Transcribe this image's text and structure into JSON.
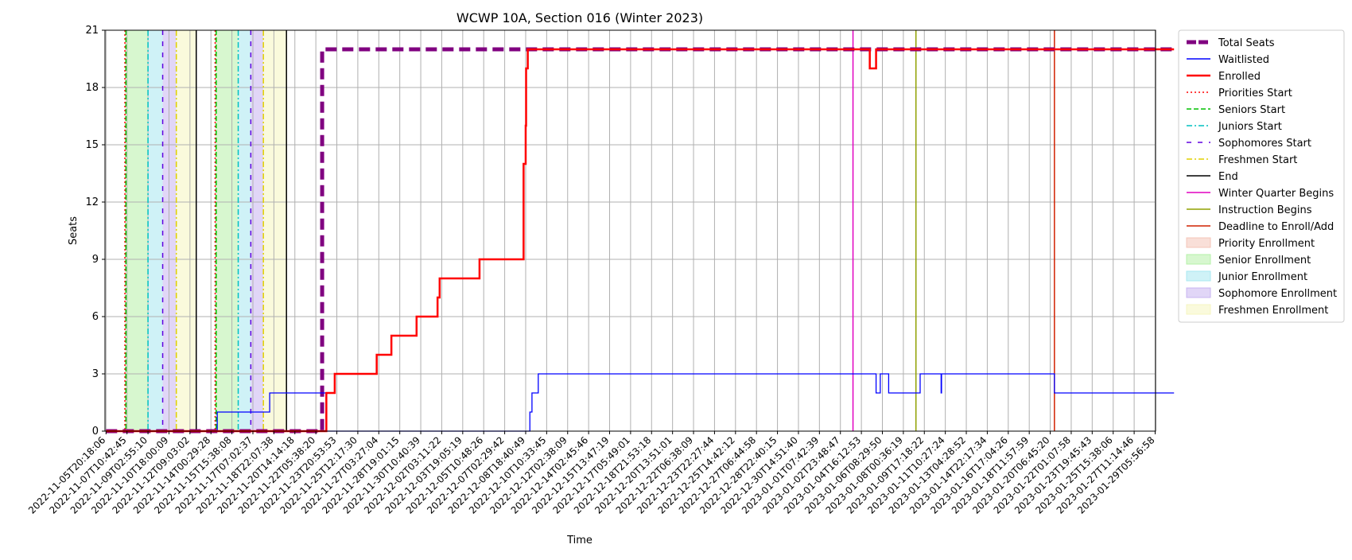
{
  "chart_data": {
    "type": "line",
    "title": "WCWP 10A, Section 016 (Winter 2023)",
    "xlabel": "Time",
    "ylabel": "Seats",
    "ylim": [
      0,
      21
    ],
    "yticks": [
      0,
      3,
      6,
      9,
      12,
      15,
      18,
      21
    ],
    "grid": true,
    "legend_position": "outside-right",
    "x_tick_labels": [
      "2022-11-05T20:18:06",
      "2022-11-07T10:42:45",
      "2022-11-09T02:55:10",
      "2022-11-10T18:00:09",
      "2022-11-12T09:03:02",
      "2022-11-14T00:29:28",
      "2022-11-15T15:38:08",
      "2022-11-17T07:02:37",
      "2022-11-18T22:07:38",
      "2022-11-20T14:14:18",
      "2022-11-22T05:38:20",
      "2022-11-23T20:53:53",
      "2022-11-25T12:17:30",
      "2022-11-27T03:27:04",
      "2022-11-28T19:01:15",
      "2022-11-30T10:40:39",
      "2022-12-02T03:11:22",
      "2022-12-03T19:05:19",
      "2022-12-05T10:48:26",
      "2022-12-07T02:29:42",
      "2022-12-08T18:40:49",
      "2022-12-10T10:33:45",
      "2022-12-12T02:38:09",
      "2022-12-14T02:45:46",
      "2022-12-15T13:47:19",
      "2022-12-17T05:49:01",
      "2022-12-18T21:53:18",
      "2022-12-20T13:51:01",
      "2022-12-22T06:38:09",
      "2022-12-23T22:27:44",
      "2022-12-25T14:42:12",
      "2022-12-27T06:44:58",
      "2022-12-28T22:40:15",
      "2022-12-30T14:51:40",
      "2023-01-01T07:42:39",
      "2023-01-02T23:48:47",
      "2023-01-04T16:12:53",
      "2023-01-06T08:29:50",
      "2023-01-08T00:36:19",
      "2023-01-09T17:18:22",
      "2023-01-11T10:27:24",
      "2023-01-13T04:28:52",
      "2023-01-14T22:17:34",
      "2023-01-16T17:04:26",
      "2023-01-18T11:57:59",
      "2023-01-20T06:45:20",
      "2023-01-22T01:07:58",
      "2023-01-23T19:45:43",
      "2023-01-25T15:38:06",
      "2023-01-27T11:14:46",
      "2023-01-29T05:56:58"
    ],
    "series": [
      {
        "name": "Total Seats",
        "color": "#800080",
        "style": "dashed-thick",
        "points": [
          [
            0,
            0
          ],
          [
            10.3,
            0
          ],
          [
            10.3,
            20
          ],
          [
            50.9,
            20
          ]
        ]
      },
      {
        "name": "Waitlisted",
        "color": "#0000ff",
        "style": "solid-thin",
        "points": [
          [
            0,
            0
          ],
          [
            5.3,
            0
          ],
          [
            5.3,
            1
          ],
          [
            7.8,
            1
          ],
          [
            7.8,
            2
          ],
          [
            10.5,
            2
          ],
          [
            10.5,
            0
          ],
          [
            20.2,
            0
          ],
          [
            20.2,
            1
          ],
          [
            20.3,
            1
          ],
          [
            20.3,
            2
          ],
          [
            20.6,
            2
          ],
          [
            20.6,
            3
          ],
          [
            36.7,
            3
          ],
          [
            36.7,
            2
          ],
          [
            36.9,
            2
          ],
          [
            36.9,
            3
          ],
          [
            37.3,
            3
          ],
          [
            37.3,
            2
          ],
          [
            38.8,
            2
          ],
          [
            38.8,
            3
          ],
          [
            39.8,
            3
          ],
          [
            39.8,
            2
          ],
          [
            39.82,
            2
          ],
          [
            39.82,
            3
          ],
          [
            45.2,
            3
          ],
          [
            45.2,
            2
          ],
          [
            50.9,
            2
          ]
        ]
      },
      {
        "name": "Enrolled",
        "color": "#ff0000",
        "style": "solid-thick",
        "points": [
          [
            0,
            0
          ],
          [
            10.5,
            0
          ],
          [
            10.5,
            2
          ],
          [
            10.9,
            2
          ],
          [
            10.9,
            3
          ],
          [
            12.9,
            3
          ],
          [
            12.9,
            4
          ],
          [
            13.6,
            4
          ],
          [
            13.6,
            5
          ],
          [
            14.8,
            5
          ],
          [
            14.8,
            6
          ],
          [
            15.8,
            6
          ],
          [
            15.8,
            7
          ],
          [
            15.9,
            7
          ],
          [
            15.9,
            8
          ],
          [
            17.8,
            8
          ],
          [
            17.8,
            9
          ],
          [
            19.9,
            9
          ],
          [
            19.9,
            14
          ],
          [
            20.0,
            14
          ],
          [
            20.0,
            16
          ],
          [
            20.02,
            16
          ],
          [
            20.02,
            19
          ],
          [
            20.1,
            19
          ],
          [
            20.1,
            20
          ],
          [
            36.4,
            20
          ],
          [
            36.4,
            19
          ],
          [
            36.7,
            19
          ],
          [
            36.7,
            20
          ],
          [
            50.9,
            20
          ]
        ]
      }
    ],
    "vertical_markers": [
      {
        "name": "Priorities Start",
        "color": "#ff0000",
        "style": "dotted",
        "x": [
          0.9,
          5.2
        ]
      },
      {
        "name": "Seniors Start",
        "color": "#00c000",
        "style": "dashed",
        "x": [
          0.95,
          5.25
        ]
      },
      {
        "name": "Juniors Start",
        "color": "#00c0c0",
        "style": "dashdot",
        "x": [
          2.0,
          6.3
        ]
      },
      {
        "name": "Sophomores Start",
        "color": "#6000e0",
        "style": "loosedash",
        "x": [
          2.7,
          6.9
        ]
      },
      {
        "name": "Freshmen Start",
        "color": "#e0d000",
        "style": "dashdot",
        "x": [
          3.35,
          7.5
        ]
      },
      {
        "name": "End",
        "color": "#000000",
        "style": "solid",
        "x": [
          4.3,
          8.6
        ]
      },
      {
        "name": "Winter Quarter Begins",
        "color": "#e000c0",
        "style": "solid",
        "x": [
          35.6
        ]
      },
      {
        "name": "Instruction Begins",
        "color": "#90a000",
        "style": "solid",
        "x": [
          38.6
        ]
      },
      {
        "name": "Deadline to Enroll/Add",
        "color": "#d02000",
        "style": "solid",
        "x": [
          45.2
        ]
      }
    ],
    "shaded_regions": [
      {
        "name": "Priority Enrollment",
        "color": "#f4c4b8",
        "spans": [
          [
            0.9,
            0.95
          ],
          [
            5.2,
            5.25
          ]
        ]
      },
      {
        "name": "Senior Enrollment",
        "color": "#b6f0a8",
        "spans": [
          [
            0.95,
            2.0
          ],
          [
            5.25,
            6.3
          ]
        ]
      },
      {
        "name": "Junior Enrollment",
        "color": "#a8e8f0",
        "spans": [
          [
            2.0,
            2.7
          ],
          [
            6.3,
            6.9
          ]
        ]
      },
      {
        "name": "Sophomore Enrollment",
        "color": "#c8b4f0",
        "spans": [
          [
            2.7,
            3.35
          ],
          [
            6.9,
            7.5
          ]
        ]
      },
      {
        "name": "Freshmen Enrollment",
        "color": "#f5f5c0",
        "spans": [
          [
            3.35,
            4.3
          ],
          [
            7.5,
            8.6
          ]
        ]
      }
    ]
  }
}
